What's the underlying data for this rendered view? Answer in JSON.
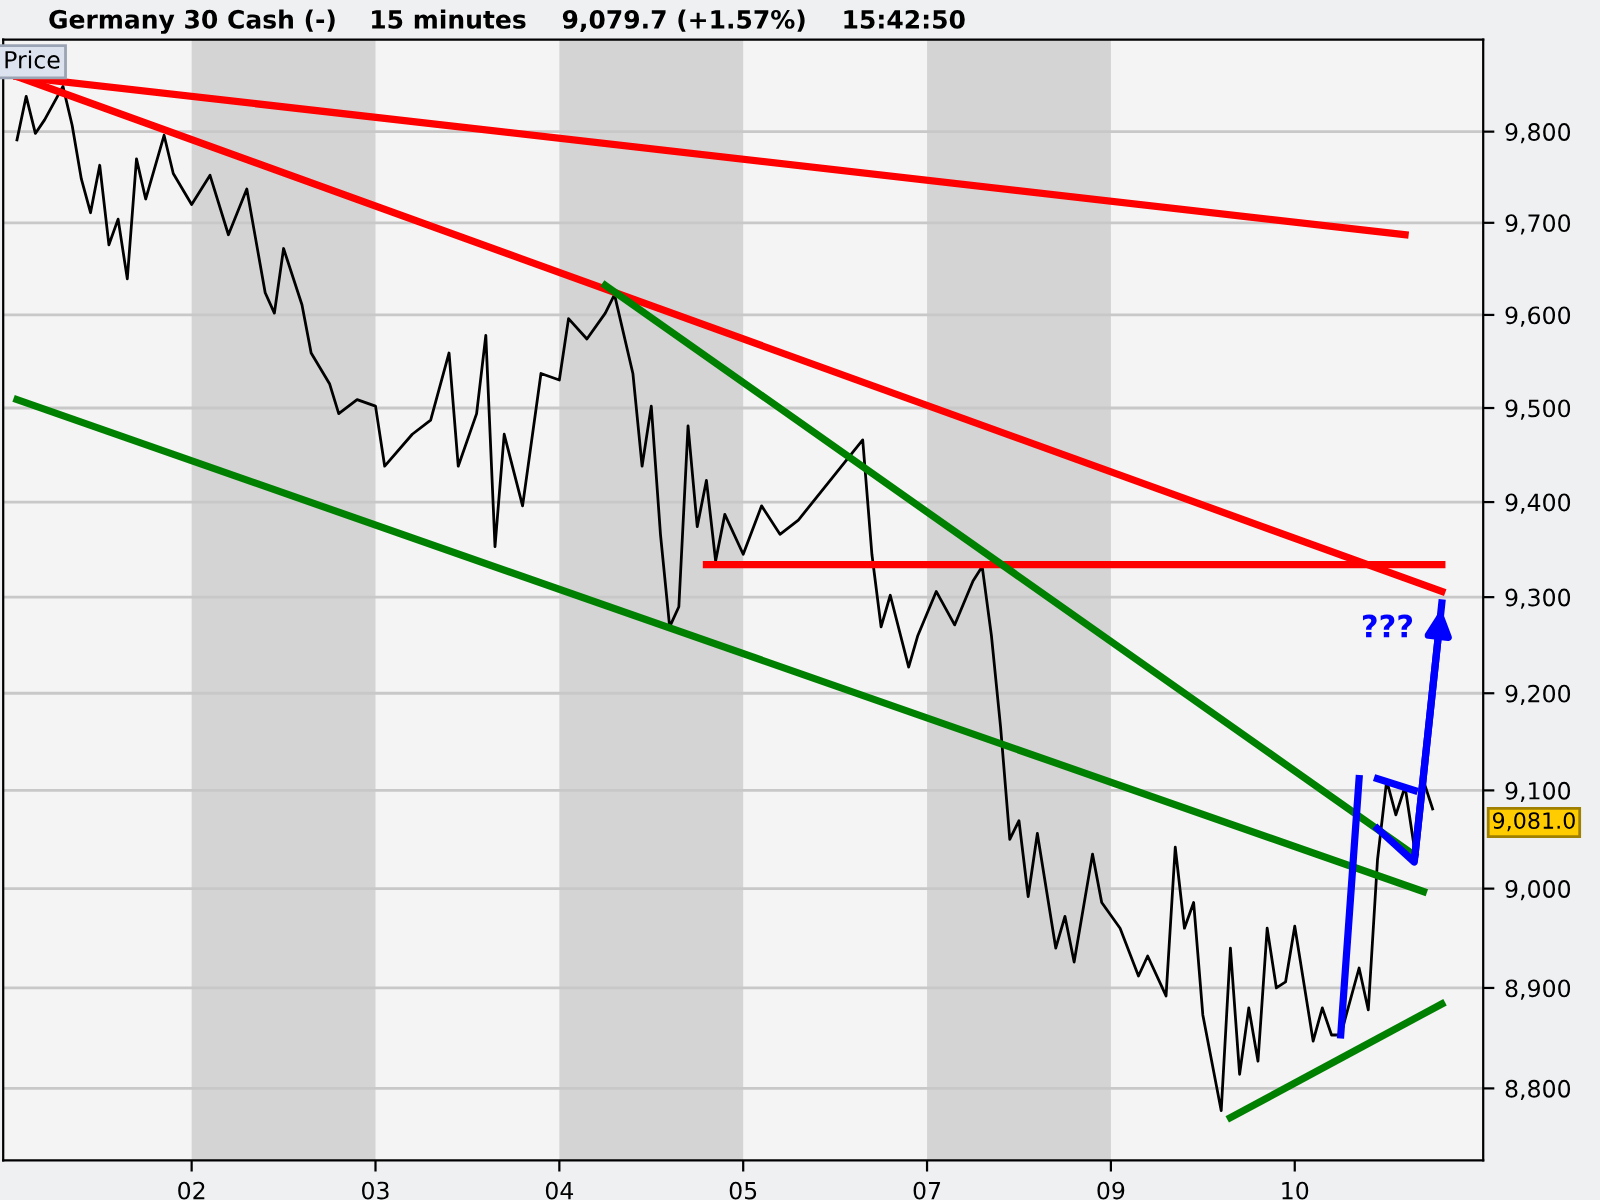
{
  "chart_data": {
    "type": "line",
    "title": "Germany 30 Cash (-)",
    "subtitle": "15 minutes    9,079.7 (+1.57%)    15:42:50",
    "log": "y",
    "grid": "y",
    "categories": [
      null,
      null,
      null,
      null,
      null,
      null,
      null,
      null,
      null,
      null,
      null,
      null,
      null,
      null,
      null,
      null,
      null,
      null,
      null,
      null,
      "02",
      null,
      null,
      null,
      null,
      null,
      null,
      null,
      null,
      null,
      null,
      null,
      null,
      null,
      null,
      null,
      null,
      null,
      null,
      null,
      "03",
      null,
      null,
      null,
      null,
      null,
      null,
      null,
      null,
      null,
      null,
      null,
      null,
      null,
      null,
      null,
      null,
      null,
      null,
      null,
      "04",
      null,
      null,
      null,
      null,
      null,
      null,
      null,
      null,
      null,
      null,
      null,
      null,
      null,
      null,
      null,
      null,
      null,
      null,
      null,
      "05",
      null,
      null,
      null,
      null,
      null,
      null,
      null,
      null,
      null,
      null,
      null,
      null,
      null,
      null,
      null,
      null,
      null,
      null,
      null,
      "07",
      null,
      null,
      null,
      null,
      null,
      null,
      null,
      null,
      null,
      null,
      null,
      null,
      null,
      null,
      null,
      null,
      null,
      null,
      null,
      "09",
      null,
      null,
      null,
      null,
      null,
      null,
      null,
      null,
      null,
      null,
      null,
      null,
      null,
      null,
      null,
      null,
      null,
      null,
      null,
      "10",
      null,
      null,
      null,
      null,
      null,
      null,
      null,
      null,
      null,
      null,
      null,
      null,
      null,
      null,
      null,
      null,
      null,
      null,
      null,
      null
    ],
    "ylim": [
      8729,
      9902
    ],
    "yticks": [
      {
        "value": 8800,
        "label": "8,800"
      },
      {
        "value": 8900,
        "label": "8,900"
      },
      {
        "value": 9000,
        "label": "9,000"
      },
      {
        "value": 9100,
        "label": "9,100"
      },
      {
        "value": 9200,
        "label": "9,200"
      },
      {
        "value": 9300,
        "label": "9,300"
      },
      {
        "value": 9400,
        "label": "9,400"
      },
      {
        "value": 9500,
        "label": "9,500"
      },
      {
        "value": 9600,
        "label": "9,600"
      },
      {
        "value": 9700,
        "label": "9,700"
      },
      {
        "value": 9800,
        "label": "9,800"
      }
    ],
    "bands": [
      {
        "axis": "x",
        "from": "02",
        "to": "03",
        "color": "#d4d4d4"
      },
      {
        "axis": "x",
        "from": "04",
        "to": "05",
        "color": "#d4d4d4"
      },
      {
        "axis": "x",
        "from": "07",
        "to": "09",
        "color": "#d4d4d4"
      }
    ],
    "series": [
      {
        "color": "#000000",
        "values": [
          null,
          9791,
          9839,
          9798,
          9813,
          null,
          9850,
          9807,
          9748,
          9711,
          9763,
          9676,
          9704,
          9639,
          9770,
          9726,
          null,
          9796,
          9754,
          null,
          9720,
          null,
          9752,
          null,
          9687,
          null,
          9737,
          null,
          9624,
          9602,
          9672,
          null,
          9611,
          9559,
          null,
          9526,
          9494,
          null,
          9509,
          null,
          9502,
          9438,
          null,
          null,
          9472,
          null,
          9487,
          null,
          9559,
          9438,
          null,
          9494,
          9578,
          9353,
          9472,
          null,
          9396,
          null,
          9537,
          null,
          9530,
          9596,
          null,
          9574,
          null,
          9602,
          9622,
          null,
          9537,
          9438,
          9502,
          9366,
          9269,
          9290,
          9481,
          9374,
          9423,
          9338,
          9387,
          null,
          9345,
          null,
          9396,
          null,
          9366,
          null,
          9381,
          null,
          null,
          null,
          null,
          null,
          null,
          9466,
          9345,
          9269,
          9302,
          null,
          9227,
          9260,
          null,
          9306,
          null,
          9271,
          null,
          9317,
          9332,
          9260,
          9165,
          9050,
          9069,
          8992,
          9056,
          null,
          8940,
          8972,
          8926,
          null,
          9035,
          8986,
          null,
          8960,
          null,
          8912,
          8932,
          null,
          8892,
          9042,
          8960,
          8986,
          8873,
          null,
          8778,
          8940,
          8814,
          8880,
          8827,
          8960,
          8900,
          8906,
          8962,
          null,
          8847,
          8880,
          8853,
          8853,
          null,
          8920,
          8878,
          9029,
          9110,
          9075,
          9104,
          9042,
          9110,
          9081,
          null,
          null,
          null,
          null,
          null
        ]
      },
      {
        "color": "#ff0000",
        "values": [
          null,
          9861,
          null,
          null,
          null,
          null,
          null,
          null,
          null,
          null,
          null,
          null,
          null,
          null,
          null,
          null,
          null,
          null,
          null,
          null,
          null,
          null,
          null,
          null,
          null,
          null,
          null,
          null,
          null,
          null,
          null,
          null,
          null,
          null,
          null,
          null,
          null,
          null,
          null,
          null,
          null,
          null,
          null,
          null,
          null,
          null,
          null,
          null,
          null,
          null,
          null,
          null,
          null,
          null,
          null,
          null,
          null,
          null,
          null,
          null,
          null,
          null,
          null,
          null,
          null,
          null,
          null,
          null,
          null,
          null,
          null,
          null,
          null,
          null,
          null,
          null,
          null,
          null,
          null,
          null,
          null,
          null,
          null,
          null,
          null,
          null,
          null,
          null,
          null,
          null,
          null,
          null,
          null,
          null,
          null,
          null,
          null,
          null,
          null,
          null,
          null,
          null,
          null,
          null,
          null,
          null,
          null,
          null,
          null,
          null,
          null,
          null,
          null,
          null,
          null,
          null,
          null,
          null,
          null,
          null,
          null,
          null,
          null,
          null,
          null,
          null,
          null,
          null,
          null,
          null,
          null,
          null,
          null,
          null,
          null,
          null,
          null,
          null,
          null,
          null,
          null,
          null,
          null,
          null,
          null,
          null,
          null,
          null,
          null,
          null,
          null,
          null,
          9687,
          null,
          null,
          null,
          null,
          null,
          null,
          null,
          null
        ]
      },
      {
        "color": "#ff0000",
        "values": [
          null,
          9861,
          null,
          null,
          null,
          null,
          null,
          null,
          null,
          null,
          null,
          null,
          null,
          null,
          null,
          null,
          null,
          null,
          null,
          null,
          null,
          null,
          null,
          null,
          null,
          null,
          null,
          null,
          null,
          null,
          null,
          null,
          null,
          null,
          null,
          null,
          null,
          null,
          null,
          null,
          null,
          null,
          null,
          null,
          null,
          null,
          null,
          null,
          null,
          null,
          null,
          null,
          null,
          null,
          null,
          null,
          null,
          null,
          null,
          null,
          null,
          null,
          null,
          null,
          null,
          null,
          null,
          null,
          null,
          null,
          null,
          null,
          null,
          null,
          null,
          null,
          null,
          null,
          null,
          null,
          null,
          null,
          null,
          null,
          null,
          null,
          null,
          null,
          null,
          null,
          null,
          null,
          null,
          null,
          null,
          null,
          null,
          null,
          null,
          null,
          null,
          null,
          null,
          null,
          null,
          null,
          null,
          null,
          null,
          null,
          null,
          null,
          null,
          null,
          null,
          null,
          null,
          null,
          null,
          null,
          null,
          null,
          null,
          null,
          null,
          null,
          null,
          null,
          null,
          null,
          null,
          null,
          null,
          null,
          null,
          null,
          null,
          null,
          null,
          null,
          null,
          null,
          null,
          null,
          null,
          null,
          null,
          null,
          null,
          null,
          null,
          null,
          null,
          null,
          null,
          null,
          9306,
          null,
          null,
          null,
          null
        ]
      },
      {
        "color": "#ff0000",
        "values": [
          null,
          null,
          null,
          null,
          null,
          null,
          null,
          null,
          null,
          null,
          null,
          null,
          null,
          null,
          null,
          null,
          null,
          null,
          null,
          null,
          null,
          null,
          null,
          null,
          null,
          null,
          null,
          null,
          null,
          null,
          null,
          null,
          null,
          null,
          null,
          null,
          null,
          null,
          null,
          null,
          null,
          null,
          null,
          null,
          null,
          null,
          null,
          null,
          null,
          null,
          null,
          null,
          null,
          null,
          null,
          null,
          null,
          null,
          null,
          null,
          null,
          null,
          null,
          null,
          null,
          null,
          null,
          null,
          null,
          null,
          null,
          null,
          null,
          null,
          null,
          null,
          9334,
          null,
          null,
          null,
          null,
          null,
          null,
          null,
          null,
          null,
          null,
          null,
          null,
          null,
          null,
          null,
          null,
          null,
          null,
          null,
          null,
          null,
          null,
          null,
          null,
          null,
          null,
          null,
          null,
          null,
          null,
          null,
          null,
          null,
          null,
          null,
          null,
          null,
          null,
          null,
          null,
          null,
          null,
          null,
          null,
          null,
          null,
          null,
          null,
          null,
          null,
          null,
          null,
          null,
          null,
          null,
          null,
          null,
          null,
          null,
          null,
          null,
          null,
          null,
          null,
          null,
          null,
          null,
          null,
          null,
          null,
          null,
          null,
          null,
          null,
          null,
          null,
          null,
          null,
          null,
          9334,
          null,
          null,
          null,
          null
        ]
      },
      {
        "color": "#008000",
        "values": [
          null,
          9509,
          null,
          null,
          null,
          null,
          null,
          null,
          null,
          null,
          null,
          null,
          null,
          null,
          null,
          null,
          null,
          null,
          null,
          null,
          null,
          null,
          null,
          null,
          null,
          null,
          null,
          null,
          null,
          null,
          null,
          null,
          null,
          null,
          null,
          null,
          null,
          null,
          null,
          null,
          null,
          null,
          null,
          null,
          null,
          null,
          null,
          null,
          null,
          null,
          null,
          null,
          null,
          null,
          null,
          null,
          null,
          null,
          null,
          null,
          null,
          null,
          null,
          null,
          null,
          null,
          null,
          null,
          null,
          null,
          null,
          null,
          null,
          null,
          null,
          null,
          null,
          null,
          null,
          null,
          null,
          null,
          null,
          null,
          null,
          null,
          null,
          null,
          null,
          null,
          null,
          null,
          null,
          null,
          null,
          null,
          null,
          null,
          null,
          null,
          null,
          null,
          null,
          null,
          null,
          null,
          null,
          null,
          null,
          null,
          null,
          null,
          null,
          null,
          null,
          null,
          null,
          null,
          null,
          null,
          null,
          null,
          null,
          null,
          null,
          null,
          null,
          null,
          null,
          null,
          null,
          null,
          null,
          null,
          null,
          null,
          null,
          null,
          null,
          null,
          null,
          null,
          null,
          null,
          null,
          null,
          null,
          null,
          null,
          null,
          null,
          null,
          null,
          null,
          8997,
          null,
          null,
          null,
          null,
          null,
          null
        ]
      },
      {
        "color": "#008000",
        "values": [
          null,
          null,
          null,
          null,
          null,
          null,
          null,
          null,
          null,
          null,
          null,
          null,
          null,
          null,
          null,
          null,
          null,
          null,
          null,
          null,
          null,
          null,
          null,
          null,
          null,
          null,
          null,
          null,
          null,
          null,
          null,
          null,
          null,
          null,
          null,
          null,
          null,
          null,
          null,
          null,
          null,
          null,
          null,
          null,
          null,
          null,
          null,
          null,
          null,
          null,
          null,
          null,
          null,
          null,
          null,
          null,
          null,
          null,
          null,
          null,
          null,
          null,
          null,
          null,
          null,
          9632,
          null,
          null,
          null,
          null,
          null,
          null,
          null,
          null,
          null,
          null,
          null,
          null,
          null,
          null,
          null,
          null,
          null,
          null,
          null,
          null,
          null,
          null,
          null,
          null,
          null,
          null,
          null,
          null,
          null,
          null,
          null,
          null,
          null,
          null,
          null,
          null,
          null,
          null,
          null,
          null,
          null,
          null,
          null,
          null,
          null,
          null,
          null,
          null,
          null,
          null,
          null,
          null,
          null,
          null,
          null,
          null,
          null,
          null,
          null,
          null,
          null,
          null,
          null,
          null,
          null,
          null,
          null,
          null,
          null,
          null,
          null,
          null,
          null,
          null,
          null,
          null,
          null,
          null,
          null,
          null,
          null,
          null,
          null,
          null,
          null,
          null,
          null,
          9034,
          null,
          null,
          null,
          null,
          null,
          null,
          null
        ]
      },
      {
        "color": "#008000",
        "values": [
          null,
          null,
          null,
          null,
          null,
          null,
          null,
          null,
          null,
          null,
          null,
          null,
          null,
          null,
          null,
          null,
          null,
          null,
          null,
          null,
          null,
          null,
          null,
          null,
          null,
          null,
          null,
          null,
          null,
          null,
          null,
          null,
          null,
          null,
          null,
          null,
          null,
          null,
          null,
          null,
          null,
          null,
          null,
          null,
          null,
          null,
          null,
          null,
          null,
          null,
          null,
          null,
          null,
          null,
          null,
          null,
          null,
          null,
          null,
          null,
          null,
          null,
          null,
          null,
          null,
          null,
          null,
          null,
          null,
          null,
          null,
          null,
          null,
          null,
          null,
          null,
          null,
          null,
          null,
          null,
          null,
          null,
          null,
          null,
          null,
          null,
          null,
          null,
          null,
          null,
          null,
          null,
          null,
          null,
          null,
          null,
          null,
          null,
          null,
          null,
          null,
          null,
          null,
          null,
          null,
          null,
          null,
          null,
          null,
          null,
          null,
          null,
          null,
          null,
          null,
          null,
          null,
          null,
          null,
          null,
          null,
          null,
          null,
          null,
          null,
          null,
          null,
          null,
          null,
          null,
          null,
          null,
          null,
          8771,
          null,
          null,
          null,
          null,
          null,
          null,
          null,
          null,
          null,
          null,
          null,
          null,
          null,
          null,
          null,
          null,
          null,
          null,
          null,
          null,
          null,
          null,
          8884,
          null,
          null,
          null,
          null
        ]
      },
      {
        "color": "#0000ff",
        "values": [
          null,
          null,
          null,
          null,
          null,
          null,
          null,
          null,
          null,
          null,
          null,
          null,
          null,
          null,
          null,
          null,
          null,
          null,
          null,
          null,
          null,
          null,
          null,
          null,
          null,
          null,
          null,
          null,
          null,
          null,
          null,
          null,
          null,
          null,
          null,
          null,
          null,
          null,
          null,
          null,
          null,
          null,
          null,
          null,
          null,
          null,
          null,
          null,
          null,
          null,
          null,
          null,
          null,
          null,
          null,
          null,
          null,
          null,
          null,
          null,
          null,
          null,
          null,
          null,
          null,
          null,
          null,
          null,
          null,
          null,
          null,
          null,
          null,
          null,
          null,
          null,
          null,
          null,
          null,
          null,
          null,
          null,
          null,
          null,
          null,
          null,
          null,
          null,
          null,
          null,
          null,
          null,
          null,
          null,
          null,
          null,
          null,
          null,
          null,
          null,
          null,
          null,
          null,
          null,
          null,
          null,
          null,
          null,
          null,
          null,
          null,
          null,
          null,
          null,
          null,
          null,
          null,
          null,
          null,
          null,
          null,
          null,
          null,
          null,
          null,
          null,
          null,
          null,
          null,
          null,
          null,
          null,
          null,
          null,
          null,
          null,
          null,
          null,
          null,
          null,
          null,
          null,
          null,
          null,
          null,
          8853,
          null,
          9112,
          null,
          null,
          null,
          null,
          null,
          null,
          null,
          null,
          null,
          null,
          null,
          null,
          null
        ]
      },
      {
        "color": "#0000ff",
        "values": [
          null,
          null,
          null,
          null,
          null,
          null,
          null,
          null,
          null,
          null,
          null,
          null,
          null,
          null,
          null,
          null,
          null,
          null,
          null,
          null,
          null,
          null,
          null,
          null,
          null,
          null,
          null,
          null,
          null,
          null,
          null,
          null,
          null,
          null,
          null,
          null,
          null,
          null,
          null,
          null,
          null,
          null,
          null,
          null,
          null,
          null,
          null,
          null,
          null,
          null,
          null,
          null,
          null,
          null,
          null,
          null,
          null,
          null,
          null,
          null,
          null,
          null,
          null,
          null,
          null,
          null,
          null,
          null,
          null,
          null,
          null,
          null,
          null,
          null,
          null,
          null,
          null,
          null,
          null,
          null,
          null,
          null,
          null,
          null,
          null,
          null,
          null,
          null,
          null,
          null,
          null,
          null,
          null,
          null,
          null,
          null,
          null,
          null,
          null,
          null,
          null,
          null,
          null,
          null,
          null,
          null,
          null,
          null,
          null,
          null,
          null,
          null,
          null,
          null,
          null,
          null,
          null,
          null,
          null,
          null,
          null,
          null,
          null,
          null,
          null,
          null,
          null,
          null,
          null,
          null,
          null,
          null,
          null,
          null,
          null,
          null,
          null,
          null,
          null,
          null,
          null,
          null,
          null,
          null,
          null,
          null,
          null,
          null,
          null,
          9112,
          null,
          null,
          null,
          9100,
          null,
          null,
          null,
          null,
          null,
          null,
          null
        ]
      },
      {
        "color": "#0000ff",
        "values": [
          null,
          null,
          null,
          null,
          null,
          null,
          null,
          null,
          null,
          null,
          null,
          null,
          null,
          null,
          null,
          null,
          null,
          null,
          null,
          null,
          null,
          null,
          null,
          null,
          null,
          null,
          null,
          null,
          null,
          null,
          null,
          null,
          null,
          null,
          null,
          null,
          null,
          null,
          null,
          null,
          null,
          null,
          null,
          null,
          null,
          null,
          null,
          null,
          null,
          null,
          null,
          null,
          null,
          null,
          null,
          null,
          null,
          null,
          null,
          null,
          null,
          null,
          null,
          null,
          null,
          null,
          null,
          null,
          null,
          null,
          null,
          null,
          null,
          null,
          null,
          null,
          null,
          null,
          null,
          null,
          null,
          null,
          null,
          null,
          null,
          null,
          null,
          null,
          null,
          null,
          null,
          null,
          null,
          null,
          null,
          null,
          null,
          null,
          null,
          null,
          null,
          null,
          null,
          null,
          null,
          null,
          null,
          null,
          null,
          null,
          null,
          null,
          null,
          null,
          null,
          null,
          null,
          null,
          null,
          null,
          null,
          null,
          null,
          null,
          null,
          null,
          null,
          null,
          null,
          null,
          null,
          null,
          null,
          null,
          null,
          null,
          null,
          null,
          null,
          null,
          null,
          null,
          null,
          null,
          null,
          null,
          null,
          null,
          null,
          9061,
          null,
          null,
          null,
          9027,
          null,
          null,
          9294,
          null,
          null,
          null,
          null
        ]
      }
    ],
    "annotations": [
      "Price",
      "???",
      "9,081.0"
    ]
  }
}
